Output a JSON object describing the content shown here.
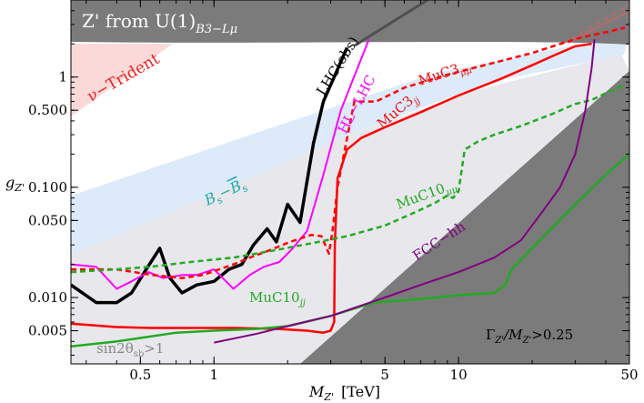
{
  "chart_data": {
    "type": "line",
    "title": "Z' from U(1)B3−Lμ",
    "title_main": "Z' from U(1)",
    "title_sub": "B3−Lμ",
    "xlabel": "MZ' [TeV]",
    "xlabel_main": "M",
    "xlabel_sub": "Z'",
    "xlabel_unit": "[TeV]",
    "ylabel": "gZ'",
    "ylabel_main": "g",
    "ylabel_sub": "Z'",
    "xscale": "log",
    "yscale": "log",
    "xlim": [
      0.26,
      50
    ],
    "ylim": [
      0.0025,
      5
    ],
    "xticks": [
      {
        "v": 0.5,
        "label": "0.5"
      },
      {
        "v": 1,
        "label": "1"
      },
      {
        "v": 5,
        "label": "5"
      },
      {
        "v": 10,
        "label": "10"
      },
      {
        "v": 50,
        "label": "50"
      }
    ],
    "yticks": [
      {
        "v": 0.005,
        "label": "0.005"
      },
      {
        "v": 0.01,
        "label": "0.010"
      },
      {
        "v": 0.05,
        "label": "0.050"
      },
      {
        "v": 0.1,
        "label": "0.100"
      },
      {
        "v": 0.5,
        "label": "0.500"
      },
      {
        "v": 1,
        "label": "1"
      }
    ],
    "series": [
      {
        "name": "LHC(obs)",
        "color": "#000000",
        "dash": "solid",
        "x": [
          0.26,
          0.33,
          0.4,
          0.46,
          0.52,
          0.6,
          0.66,
          0.74,
          0.85,
          1.0,
          1.15,
          1.3,
          1.45,
          1.65,
          1.8,
          2.0,
          2.25,
          2.55,
          2.8,
          3.1,
          3.5
        ],
        "y": [
          0.013,
          0.009,
          0.009,
          0.011,
          0.017,
          0.028,
          0.015,
          0.011,
          0.013,
          0.014,
          0.018,
          0.02,
          0.03,
          0.042,
          0.032,
          0.07,
          0.048,
          0.25,
          0.6,
          1.0,
          1.85
        ]
      },
      {
        "name": "HL-LHC",
        "color": "#ff00ff",
        "dash": "solid",
        "x": [
          0.26,
          0.33,
          0.4,
          0.46,
          0.54,
          0.62,
          0.74,
          0.85,
          1.0,
          1.2,
          1.4,
          1.6,
          1.85,
          2.1,
          2.4,
          2.8,
          3.3,
          3.8,
          4.3
        ],
        "y": [
          0.02,
          0.019,
          0.012,
          0.014,
          0.017,
          0.015,
          0.016,
          0.016,
          0.018,
          0.012,
          0.016,
          0.019,
          0.021,
          0.028,
          0.04,
          0.13,
          0.5,
          1.1,
          2.2
        ]
      },
      {
        "name": "MuC3μμ",
        "color": "#ff0000",
        "dash": "dashed",
        "x": [
          0.26,
          0.4,
          0.56,
          0.74,
          0.9,
          1.05,
          1.2,
          1.4,
          1.7,
          2.05,
          2.5,
          2.75,
          2.85,
          2.95,
          3.05,
          3.2,
          3.4,
          3.75,
          4.6,
          6,
          9,
          14,
          20,
          27,
          32,
          40,
          48
        ],
        "y": [
          0.018,
          0.018,
          0.016,
          0.015,
          0.016,
          0.018,
          0.02,
          0.023,
          0.027,
          0.032,
          0.037,
          0.036,
          0.03,
          0.025,
          0.04,
          0.1,
          0.2,
          0.6,
          0.6,
          0.8,
          1.05,
          1.35,
          1.65,
          2.05,
          2.3,
          2.55,
          2.8
        ]
      },
      {
        "name": "MuC3jj",
        "color": "#ff0000",
        "dash": "solid",
        "x": [
          0.26,
          0.4,
          0.55,
          0.8,
          1.2,
          1.8,
          2.4,
          2.8,
          3.0,
          3.1,
          3.12,
          3.2,
          3.5,
          4.0,
          5,
          7,
          10,
          15,
          20,
          25,
          30,
          35
        ],
        "y": [
          0.0058,
          0.0054,
          0.0053,
          0.0053,
          0.0053,
          0.0052,
          0.005,
          0.0048,
          0.005,
          0.006,
          0.03,
          0.12,
          0.22,
          0.28,
          0.35,
          0.48,
          0.68,
          0.97,
          1.28,
          1.6,
          1.9,
          2.0
        ]
      },
      {
        "name": "MuC10μμ",
        "color": "#22aa22",
        "dash": "dashed",
        "x": [
          0.26,
          0.4,
          0.55,
          0.8,
          1.2,
          1.8,
          2.5,
          3.5,
          5,
          6.5,
          8,
          9,
          9.5,
          10,
          10.6,
          12,
          14,
          18,
          24,
          30,
          35,
          42,
          48
        ],
        "y": [
          0.017,
          0.018,
          0.019,
          0.021,
          0.023,
          0.027,
          0.031,
          0.036,
          0.045,
          0.058,
          0.072,
          0.084,
          0.08,
          0.092,
          0.22,
          0.26,
          0.3,
          0.36,
          0.46,
          0.57,
          0.62,
          0.75,
          0.84
        ]
      },
      {
        "name": "MuC10jj",
        "color": "#22aa22",
        "dash": "solid",
        "x": [
          0.26,
          0.4,
          0.5,
          0.7,
          1.0,
          1.5,
          2.0,
          3.0,
          4.5,
          7,
          10,
          14,
          15.5,
          16.5,
          20,
          30,
          40,
          50
        ],
        "y": [
          0.0036,
          0.004,
          0.0043,
          0.0048,
          0.005,
          0.0052,
          0.0055,
          0.0068,
          0.009,
          0.0097,
          0.0105,
          0.011,
          0.013,
          0.018,
          0.028,
          0.07,
          0.13,
          0.2
        ]
      },
      {
        "name": "FCC-hh",
        "color": "#800080",
        "dash": "solid",
        "x": [
          1.0,
          1.5,
          2.0,
          3.0,
          5.0,
          7.0,
          10,
          14,
          18,
          22,
          26,
          30,
          33,
          35,
          36
        ],
        "y": [
          0.0039,
          0.0047,
          0.0055,
          0.0068,
          0.01,
          0.013,
          0.017,
          0.023,
          0.033,
          0.06,
          0.1,
          0.2,
          0.5,
          1.2,
          2.2
        ]
      }
    ],
    "regions": [
      {
        "name": "Z' from U(1)B3−Lμ",
        "color": "#7b7b7b"
      },
      {
        "name": "ν−Trident",
        "color": "#fbd9d9"
      },
      {
        "name": "Bs−B̄s",
        "color": "#dceafa"
      },
      {
        "name": "sin2θsb>1",
        "color": "#e7e7ec"
      },
      {
        "name": "ΓZ'/MZ'>0.25",
        "color": "#7b7b7b"
      }
    ],
    "labels": {
      "trident": "ν−Trident",
      "bs_main": "B",
      "bs_sub": "s",
      "bs_sep": "−",
      "bsbar_main": "B",
      "bsbar_sub": "s",
      "lhc_obs": "LHC(obs)",
      "hl_lhc": "HL−LHC",
      "muc3mm_main": "MuC3",
      "muc3mm_sub": "μμ",
      "muc3jj_main": "MuC3",
      "muc3jj_sub": "jj",
      "muc10mm_main": "MuC10",
      "muc10mm_sub": "μμ",
      "muc10jj_main": "MuC10",
      "muc10jj_sub": "jj",
      "fcc": "FCC−hh",
      "sin_main": "sin2θ",
      "sin_sub": "sb",
      "sin_tail": ">1",
      "width_g": "Γ",
      "width_sub1": "Z'",
      "width_mid": "/M",
      "width_sub2": "Z'",
      "width_tail": ">0.25"
    },
    "grid": false,
    "legend": "none"
  }
}
